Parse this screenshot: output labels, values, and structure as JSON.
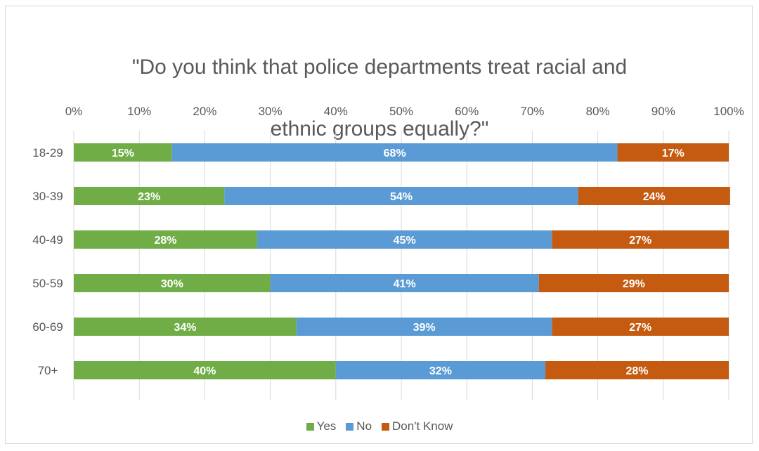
{
  "chart_data": {
    "type": "bar",
    "orientation": "horizontal",
    "stacked": "percent",
    "title": "\"Do you think that police departments treat racial and ethnic groups equally?\"",
    "title_lines": [
      "\"Do you think that police departments treat racial and",
      "ethnic groups equally?\""
    ],
    "categories": [
      "18-29",
      "30-39",
      "40-49",
      "50-59",
      "60-69",
      "70+"
    ],
    "x_ticks": [
      "0%",
      "10%",
      "20%",
      "30%",
      "40%",
      "50%",
      "60%",
      "70%",
      "80%",
      "90%",
      "100%"
    ],
    "xlim": [
      0,
      100
    ],
    "grid": true,
    "legend_position": "bottom",
    "series": [
      {
        "name": "Yes",
        "color": "#70ad47",
        "values": [
          15,
          23,
          28,
          30,
          34,
          40
        ],
        "labels": [
          "15%",
          "23%",
          "28%",
          "30%",
          "34%",
          "40%"
        ]
      },
      {
        "name": "No",
        "color": "#5b9bd5",
        "values": [
          68,
          54,
          45,
          41,
          39,
          32
        ],
        "labels": [
          "68%",
          "54%",
          "45%",
          "41%",
          "39%",
          "32%"
        ]
      },
      {
        "name": "Don't Know",
        "color": "#c55a11",
        "values": [
          17,
          24,
          27,
          29,
          27,
          28
        ],
        "labels": [
          "17%",
          "24%",
          "27%",
          "29%",
          "27%",
          "28%"
        ]
      }
    ]
  }
}
